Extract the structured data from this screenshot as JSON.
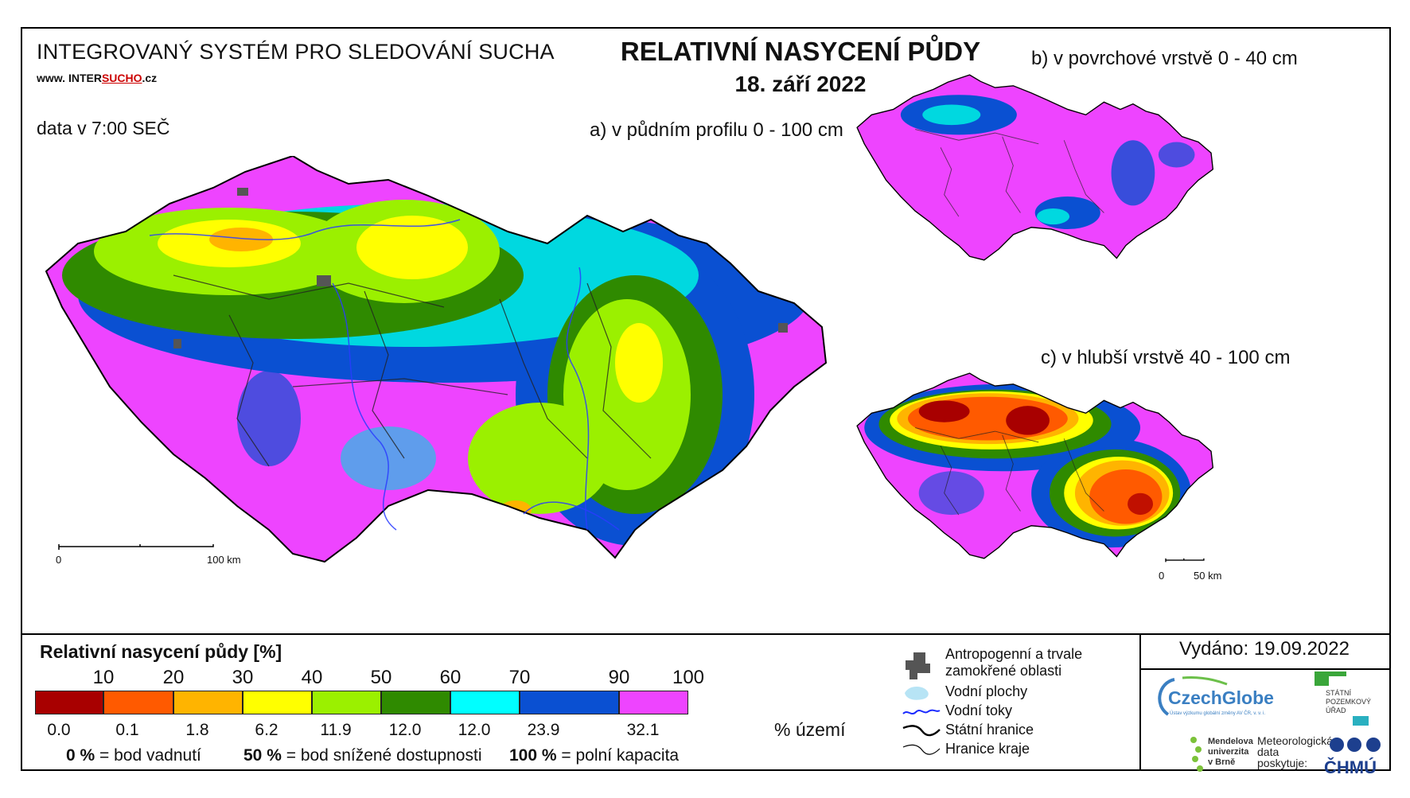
{
  "header": {
    "system_name": "INTEGROVANÝ SYSTÉM PRO SLEDOVÁNÍ SUCHA",
    "url_prefix": "www.",
    "url_a": "INTER",
    "url_b": "SUCHO",
    "url_c": ".cz",
    "data_time": "data v 7:00 SEČ",
    "title": "RELATIVNÍ NASYCENÍ PŮDY",
    "date": "18. září 2022"
  },
  "maps": {
    "a_label": "a) v půdním profilu 0 - 100 cm",
    "b_label": "b) v povrchové vrstvě 0 - 40 cm",
    "c_label": "c) v hlubší vrstvě 40 - 100 cm",
    "scale_a": {
      "zero": "0",
      "end": "100 km"
    },
    "scale_c": {
      "zero": "0",
      "end": "50 km"
    }
  },
  "legend": {
    "title": "Relativní nasycení půdy [%]",
    "ticks": [
      "10",
      "20",
      "30",
      "40",
      "50",
      "60",
      "70",
      "90",
      "100"
    ],
    "classes": [
      {
        "color": "#a80000",
        "share": "0.0"
      },
      {
        "color": "#ff5a00",
        "share": "0.1"
      },
      {
        "color": "#ffb400",
        "share": "1.8"
      },
      {
        "color": "#ffff00",
        "share": "6.2"
      },
      {
        "color": "#9bf000",
        "share": "11.9"
      },
      {
        "color": "#2f8a00",
        "share": "12.0"
      },
      {
        "color": "#00ffff",
        "share": "12.0"
      },
      {
        "color": "#0a50d2",
        "share": "23.9"
      },
      {
        "color": "#ee44ff",
        "share": "32.1"
      }
    ],
    "share_unit": "% území",
    "notes": [
      {
        "value": "0 %",
        "text": "= bod vadnutí"
      },
      {
        "value": "50 %",
        "text": "= bod snížené dostupnosti"
      },
      {
        "value": "100 %",
        "text": "= polní kapacita"
      }
    ]
  },
  "symbols": {
    "urban_line1": "Antropogenní a trvale",
    "urban_line2": "zamokřené oblasti",
    "water_bodies": "Vodní plochy",
    "rivers": "Vodní toky",
    "state_border": "Státní hranice",
    "region_border": "Hranice kraje"
  },
  "footer": {
    "issued": "Vydáno: 19.09.2022",
    "czechglobe": "CzechGlobe",
    "czechglobe_sub": "Ústav výzkumu globální změny AV ČR, v. v. i.",
    "spu": [
      "STÁTNÍ",
      "POZEMKOVÝ",
      "ÚŘAD"
    ],
    "mendel": [
      "Mendelova",
      "univerzita",
      "v Brně"
    ],
    "met": [
      "Meteorologická",
      "data",
      "poskytuje:"
    ],
    "chmu": "ČHMÚ"
  }
}
